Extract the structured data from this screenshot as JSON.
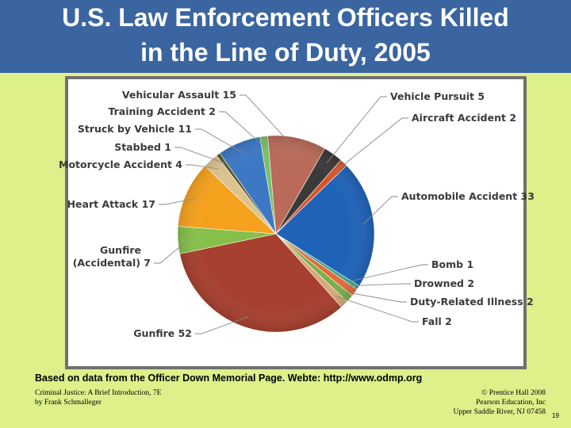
{
  "slide": {
    "title_line_1": "U.S. Law Enforcement Officers Killed",
    "title_line_2": "in the Line of Duty, 2005",
    "source_note": "Based on data from the Officer Down Memorial Page.  Webte: http://www.odmp.org",
    "footer_left": [
      "Criminal Justice: A Brief Introduction, 7E",
      "by Frank Schmalleger"
    ],
    "footer_right": [
      "© Prentice Hall 2008",
      "Pearson Education, Inc",
      "Upper Saddle River, NJ 07458"
    ],
    "slide_number": "19"
  },
  "colors": {
    "title_bar": "#3a65a0",
    "background": "#ddf08a"
  },
  "chart_data": {
    "type": "pie",
    "title": "",
    "slices": [
      {
        "label": "Vehicle Pursuit 5",
        "category": "Vehicle Pursuit",
        "value": 5,
        "color": "#3a3a3a"
      },
      {
        "label": "Aircraft Accident 2",
        "category": "Aircraft Accident",
        "value": 2,
        "color": "#d9542a"
      },
      {
        "label": "Automobile Accident 33",
        "category": "Automobile Accident",
        "value": 33,
        "color": "#1f63b8"
      },
      {
        "label": "Bomb 1",
        "category": "Bomb",
        "value": 1,
        "color": "#3aa28a"
      },
      {
        "label": "Drowned 2",
        "category": "Drowned",
        "value": 2,
        "color": "#e46a3a"
      },
      {
        "label": "Duty-Related Illness 2",
        "category": "Duty-Related Illness",
        "value": 2,
        "color": "#7ab048"
      },
      {
        "label": "Fall 2",
        "category": "Fall",
        "value": 2,
        "color": "#d8a878"
      },
      {
        "label": "Gunfire 52",
        "category": "Gunfire",
        "value": 52,
        "color": "#a7402e"
      },
      {
        "label": "Gunfire (Accidental) 7",
        "category": "Gunfire (Accidental)",
        "value": 7,
        "color": "#86c04a"
      },
      {
        "label": "Heart Attack 17",
        "category": "Heart Attack",
        "value": 17,
        "color": "#f4a11e"
      },
      {
        "label": "Motorcycle Accident 4",
        "category": "Motorcycle Accident",
        "value": 4,
        "color": "#dcc38e"
      },
      {
        "label": "Stabbed 1",
        "category": "Stabbed",
        "value": 1,
        "color": "#5a5a2a"
      },
      {
        "label": "Struck by Vehicle 11",
        "category": "Struck by Vehicle",
        "value": 11,
        "color": "#3c78c4"
      },
      {
        "label": "Training Accident 2",
        "category": "Training Accident",
        "value": 2,
        "color": "#7ac06a"
      },
      {
        "label": "Vehicular Assault 15",
        "category": "Vehicular Assault",
        "value": 15,
        "color": "#b96a58"
      }
    ],
    "start": "top, clockwise"
  }
}
